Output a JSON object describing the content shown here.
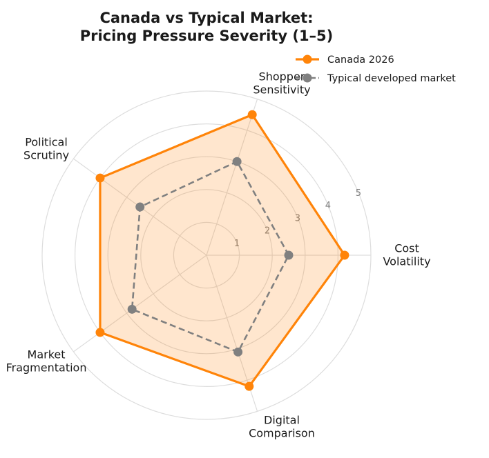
{
  "chart_data": {
    "type": "radar",
    "title_lines": [
      "Canada vs Typical Market:",
      "Pricing Pressure Severity (1–5)"
    ],
    "axes": [
      {
        "name": "cost-volatility",
        "label_lines": [
          "Cost",
          "Volatility"
        ]
      },
      {
        "name": "shopper-sensitivity",
        "label_lines": [
          "Shopper",
          "Sensitivity"
        ]
      },
      {
        "name": "political-scrutiny",
        "label_lines": [
          "Political",
          "Scrutiny"
        ]
      },
      {
        "name": "market-fragmentation",
        "label_lines": [
          "Market",
          "Fragmentation"
        ]
      },
      {
        "name": "digital-comparison",
        "label_lines": [
          "Digital",
          "Comparison"
        ]
      }
    ],
    "rlim": [
      0,
      5
    ],
    "ticks": [
      "1",
      "2",
      "3",
      "4",
      "5"
    ],
    "grid": true,
    "legend_position": "top-right",
    "series": [
      {
        "name": "Canada 2026",
        "values": [
          4.2,
          4.5,
          4.0,
          4.0,
          4.2
        ],
        "color": "#ff8409",
        "line": "solid",
        "filled": true
      },
      {
        "name": "Typical developed market",
        "values": [
          2.5,
          3.0,
          2.5,
          2.8,
          3.1
        ],
        "color": "#808080",
        "line": "dashed",
        "filled": false
      }
    ]
  }
}
